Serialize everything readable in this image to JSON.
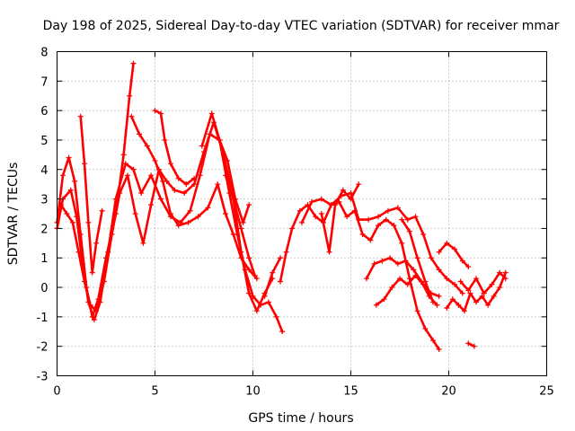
{
  "chart_data": {
    "type": "scatter",
    "title": "Day 198 of 2025, Sidereal Day-to-day VTEC variation (SDTVAR) for receiver mmar",
    "xlabel": "GPS time / hours",
    "ylabel": "SDTVAR / TECUs",
    "xlim": [
      0,
      25
    ],
    "ylim": [
      -3,
      8
    ],
    "xticks": [
      0,
      5,
      10,
      15,
      20,
      25
    ],
    "yticks": [
      -3,
      -2,
      -1,
      0,
      1,
      2,
      3,
      4,
      5,
      6,
      7,
      8
    ],
    "xtick_labels": [
      "0",
      "5",
      "10",
      "15",
      "20",
      "25"
    ],
    "ytick_labels": [
      "-3",
      "-2",
      "-1",
      "0",
      "1",
      "2",
      "3",
      "4",
      "5",
      "6",
      "7",
      "8"
    ],
    "grid": true,
    "marker": "+",
    "color": "#ff0000",
    "series": [
      {
        "name": "trace-1",
        "x": [
          0.0,
          0.3,
          0.6,
          0.9,
          1.2,
          1.5,
          1.8,
          2.1,
          2.5,
          3.0,
          3.4,
          3.7,
          3.9
        ],
        "y": [
          2.2,
          3.8,
          4.4,
          3.6,
          1.8,
          0.0,
          -1.0,
          -0.4,
          1.0,
          2.5,
          4.5,
          6.5,
          7.6
        ]
      },
      {
        "name": "trace-2",
        "x": [
          0.0,
          0.3,
          0.7,
          1.0,
          1.3,
          1.6,
          1.9,
          2.2,
          2.6,
          3.0,
          3.5,
          3.9,
          4.3,
          4.8,
          5.3,
          5.8,
          6.3,
          6.8,
          7.3,
          7.8,
          8.3,
          8.8,
          9.2,
          9.6,
          10.0,
          10.4,
          10.8,
          11.2,
          11.5
        ],
        "y": [
          2.0,
          3.0,
          3.3,
          2.4,
          0.8,
          -0.5,
          -1.1,
          -0.5,
          1.2,
          3.0,
          4.2,
          4.0,
          3.2,
          3.8,
          3.0,
          2.4,
          2.2,
          2.6,
          3.8,
          5.2,
          5.0,
          3.2,
          1.8,
          0.6,
          -0.3,
          -0.6,
          -0.5,
          -1.0,
          -1.5
        ]
      },
      {
        "name": "trace-3",
        "x": [
          0.2,
          0.5,
          0.8,
          1.1,
          1.4,
          1.7,
          2.0,
          2.4,
          2.8,
          3.2,
          3.6,
          4.0,
          4.4,
          4.8,
          5.2,
          5.6,
          6.0,
          6.5,
          7.0,
          7.5,
          8.0,
          8.5,
          9.0,
          9.4,
          9.8,
          10.2,
          10.6,
          11.0
        ],
        "y": [
          2.8,
          2.5,
          2.2,
          1.2,
          0.2,
          -0.6,
          -0.8,
          0.2,
          1.8,
          3.2,
          3.8,
          2.5,
          1.5,
          2.8,
          4.0,
          3.6,
          3.3,
          3.2,
          3.5,
          4.6,
          5.6,
          4.5,
          3.0,
          1.2,
          -0.2,
          -0.8,
          -0.2,
          0.3
        ]
      },
      {
        "name": "trace-4",
        "x": [
          1.2,
          1.4,
          1.6,
          1.8,
          2.0,
          2.3
        ],
        "y": [
          5.8,
          4.2,
          2.2,
          0.5,
          1.5,
          2.6
        ]
      },
      {
        "name": "trace-5",
        "x": [
          3.8,
          4.2,
          4.6,
          5.0,
          5.4,
          5.8,
          6.2,
          6.7,
          7.2,
          7.7,
          8.2,
          8.6,
          9.0,
          9.4,
          9.8,
          10.2
        ],
        "y": [
          5.8,
          5.2,
          4.8,
          4.3,
          3.6,
          2.5,
          2.1,
          2.2,
          2.4,
          2.7,
          3.5,
          2.5,
          1.8,
          1.0,
          0.6,
          0.3
        ]
      },
      {
        "name": "trace-6",
        "x": [
          5.0,
          5.3,
          5.5,
          5.8,
          6.2,
          6.6,
          7.0
        ],
        "y": [
          6.0,
          5.9,
          5.0,
          4.2,
          3.7,
          3.5,
          3.7
        ]
      },
      {
        "name": "trace-7",
        "x": [
          7.4,
          7.9,
          8.3,
          8.7,
          9.1,
          9.5,
          9.8
        ],
        "y": [
          4.8,
          5.9,
          5.0,
          4.3,
          3.0,
          2.2,
          2.8
        ]
      },
      {
        "name": "trace-8",
        "x": [
          8.6,
          9.0,
          9.4,
          9.8,
          10.1
        ],
        "y": [
          3.8,
          3.0,
          2.0,
          1.0,
          0.4
        ]
      },
      {
        "name": "trace-9",
        "x": [
          10.6,
          11.0,
          11.4
        ],
        "y": [
          -0.3,
          0.5,
          1.0
        ]
      },
      {
        "name": "trace-10",
        "x": [
          11.4,
          11.7,
          12.0,
          12.4,
          12.8,
          13.2,
          13.6,
          14.0,
          14.4,
          14.8,
          15.2,
          15.6,
          16.0,
          16.4,
          16.8,
          17.2,
          17.6,
          18.0,
          18.4,
          18.8,
          19.2,
          19.5
        ],
        "y": [
          0.2,
          1.2,
          2.0,
          2.6,
          2.8,
          2.4,
          2.2,
          2.8,
          2.9,
          2.4,
          2.6,
          1.8,
          1.6,
          2.1,
          2.3,
          2.1,
          1.5,
          0.3,
          -0.8,
          -1.4,
          -1.8,
          -2.1
        ]
      },
      {
        "name": "trace-11",
        "x": [
          12.5,
          13.0,
          13.5,
          14.0,
          14.5,
          15.0,
          15.4,
          15.9,
          16.4,
          16.9,
          17.4,
          17.9,
          18.3,
          18.7,
          19.1,
          19.5,
          19.9,
          20.3,
          20.7
        ],
        "y": [
          2.2,
          2.9,
          3.0,
          2.8,
          3.1,
          3.2,
          2.3,
          2.3,
          2.4,
          2.6,
          2.7,
          2.3,
          2.4,
          1.8,
          1.0,
          0.6,
          0.3,
          0.1,
          -0.2
        ]
      },
      {
        "name": "trace-12",
        "x": [
          13.5,
          13.9,
          14.2,
          14.6,
          15.0,
          15.4
        ],
        "y": [
          2.5,
          1.2,
          2.8,
          3.3,
          3.0,
          3.5
        ]
      },
      {
        "name": "trace-13",
        "x": [
          15.8,
          16.2,
          16.6,
          17.0,
          17.4,
          17.8,
          18.2,
          18.6,
          19.0,
          19.4
        ],
        "y": [
          0.3,
          0.8,
          0.9,
          1.0,
          0.8,
          0.9,
          0.6,
          0.2,
          -0.3,
          -0.6
        ]
      },
      {
        "name": "trace-14",
        "x": [
          16.3,
          16.7,
          17.1,
          17.5,
          17.9,
          18.3,
          18.7,
          19.1,
          19.5
        ],
        "y": [
          -0.6,
          -0.4,
          0.0,
          0.3,
          0.1,
          0.4,
          0.1,
          -0.2,
          -0.3
        ]
      },
      {
        "name": "trace-15",
        "x": [
          17.6,
          18.0,
          18.4,
          18.8,
          19.2
        ],
        "y": [
          2.3,
          1.9,
          1.0,
          0.2,
          -0.5
        ]
      },
      {
        "name": "trace-16",
        "x": [
          19.5,
          19.9,
          20.3,
          20.7,
          21.0
        ],
        "y": [
          1.2,
          1.5,
          1.3,
          0.9,
          0.7
        ]
      },
      {
        "name": "trace-17",
        "x": [
          19.9,
          20.2,
          20.5,
          20.8,
          21.1,
          21.4,
          21.7,
          22.0,
          22.3,
          22.6,
          22.9
        ],
        "y": [
          -0.7,
          -0.4,
          -0.6,
          -0.8,
          -0.2,
          -0.5,
          -0.3,
          -0.6,
          -0.3,
          0.0,
          0.5
        ]
      },
      {
        "name": "trace-18",
        "x": [
          20.6,
          21.0,
          21.4,
          21.8,
          22.2,
          22.6,
          22.9
        ],
        "y": [
          0.2,
          -0.1,
          0.3,
          -0.2,
          0.1,
          0.5,
          0.3
        ]
      },
      {
        "name": "trace-19",
        "x": [
          21.0,
          21.3
        ],
        "y": [
          -1.9,
          -2.0
        ]
      }
    ]
  }
}
